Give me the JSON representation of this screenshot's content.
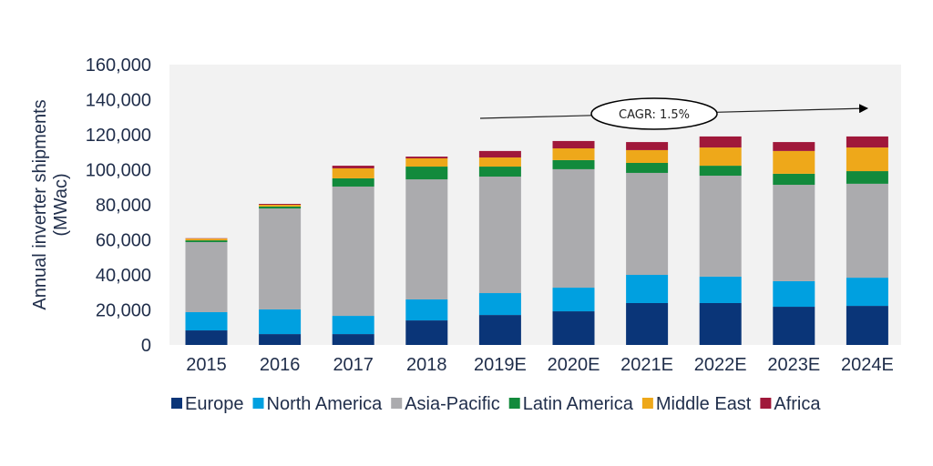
{
  "chart_data": {
    "type": "bar",
    "stacked": true,
    "title": "",
    "xlabel": "",
    "ylabel_lines": [
      "Annual inverter shipments",
      "(MWac)"
    ],
    "ylim": [
      0,
      160000
    ],
    "yticks": [
      0,
      20000,
      40000,
      60000,
      80000,
      100000,
      120000,
      140000,
      160000
    ],
    "ytick_labels": [
      "0",
      "20,000",
      "40,000",
      "60,000",
      "80,000",
      "100,000",
      "120,000",
      "140,000",
      "160,000"
    ],
    "grid": false,
    "legend_position": "bottom",
    "categories": [
      "2015",
      "2016",
      "2017",
      "2018",
      "2019E",
      "2020E",
      "2021E",
      "2022E",
      "2023E",
      "2024E"
    ],
    "series": [
      {
        "name": "Europe",
        "color": "#0A3578",
        "values": [
          8300,
          6200,
          6200,
          14000,
          17100,
          19200,
          23900,
          23900,
          21800,
          22300
        ]
      },
      {
        "name": "North America",
        "color": "#00A0E0",
        "values": [
          10400,
          14100,
          10400,
          12000,
          12500,
          13500,
          16100,
          15100,
          14600,
          16100
        ]
      },
      {
        "name": "Asia-Pacific",
        "color": "#ABABAE",
        "values": [
          40000,
          57600,
          73800,
          68500,
          66500,
          67600,
          58200,
          57600,
          55000,
          53600
        ]
      },
      {
        "name": "Latin America",
        "color": "#128A3C",
        "values": [
          1000,
          1100,
          4700,
          7300,
          5700,
          5200,
          5700,
          5700,
          6300,
          7200
        ]
      },
      {
        "name": "Middle East",
        "color": "#EEA81A",
        "values": [
          1000,
          1000,
          5700,
          4700,
          5200,
          6700,
          7300,
          10400,
          13000,
          13500
        ]
      },
      {
        "name": "Africa",
        "color": "#A0183A",
        "values": [
          200,
          500,
          1500,
          1000,
          3700,
          4200,
          4600,
          6300,
          5100,
          6300
        ]
      }
    ],
    "annotations": [
      {
        "text": "CAGR: 1.5%",
        "type": "arrow-with-callout",
        "from_category": "2019E",
        "to_category": "2024E"
      }
    ]
  },
  "colors": {
    "plot_background": "#F2F2F2",
    "text": "#1F2D4A"
  }
}
